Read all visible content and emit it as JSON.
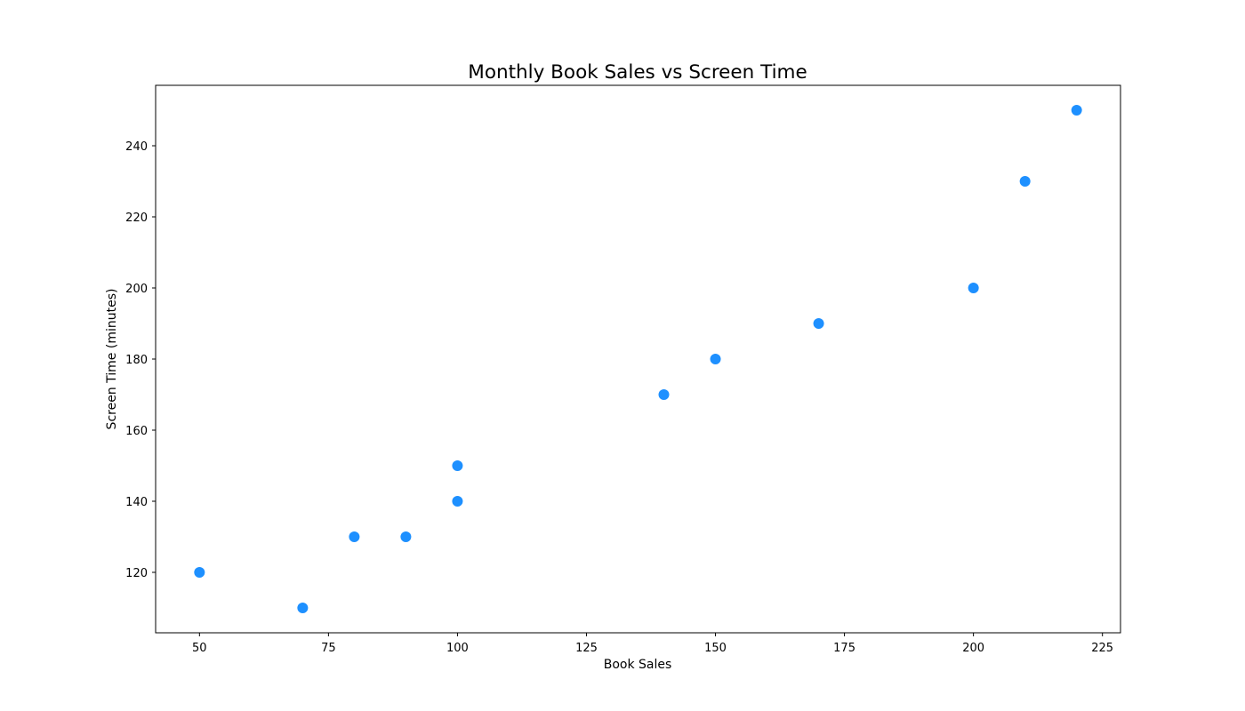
{
  "chart_data": {
    "type": "scatter",
    "title": "Monthly Book Sales vs Screen Time",
    "xlabel": "Book Sales",
    "ylabel": "Screen Time (minutes)",
    "xlim": [
      41.5,
      228.5
    ],
    "ylim": [
      103,
      257
    ],
    "xticks": [
      50,
      75,
      100,
      125,
      150,
      175,
      200,
      225
    ],
    "yticks": [
      120,
      140,
      160,
      180,
      200,
      220,
      240
    ],
    "grid": false,
    "marker_color": "#1e90ff",
    "points": [
      {
        "x": 50,
        "y": 120
      },
      {
        "x": 70,
        "y": 110
      },
      {
        "x": 80,
        "y": 130
      },
      {
        "x": 90,
        "y": 130
      },
      {
        "x": 100,
        "y": 150
      },
      {
        "x": 100,
        "y": 140
      },
      {
        "x": 140,
        "y": 170
      },
      {
        "x": 150,
        "y": 180
      },
      {
        "x": 170,
        "y": 190
      },
      {
        "x": 200,
        "y": 200
      },
      {
        "x": 210,
        "y": 230
      },
      {
        "x": 220,
        "y": 250
      }
    ]
  }
}
